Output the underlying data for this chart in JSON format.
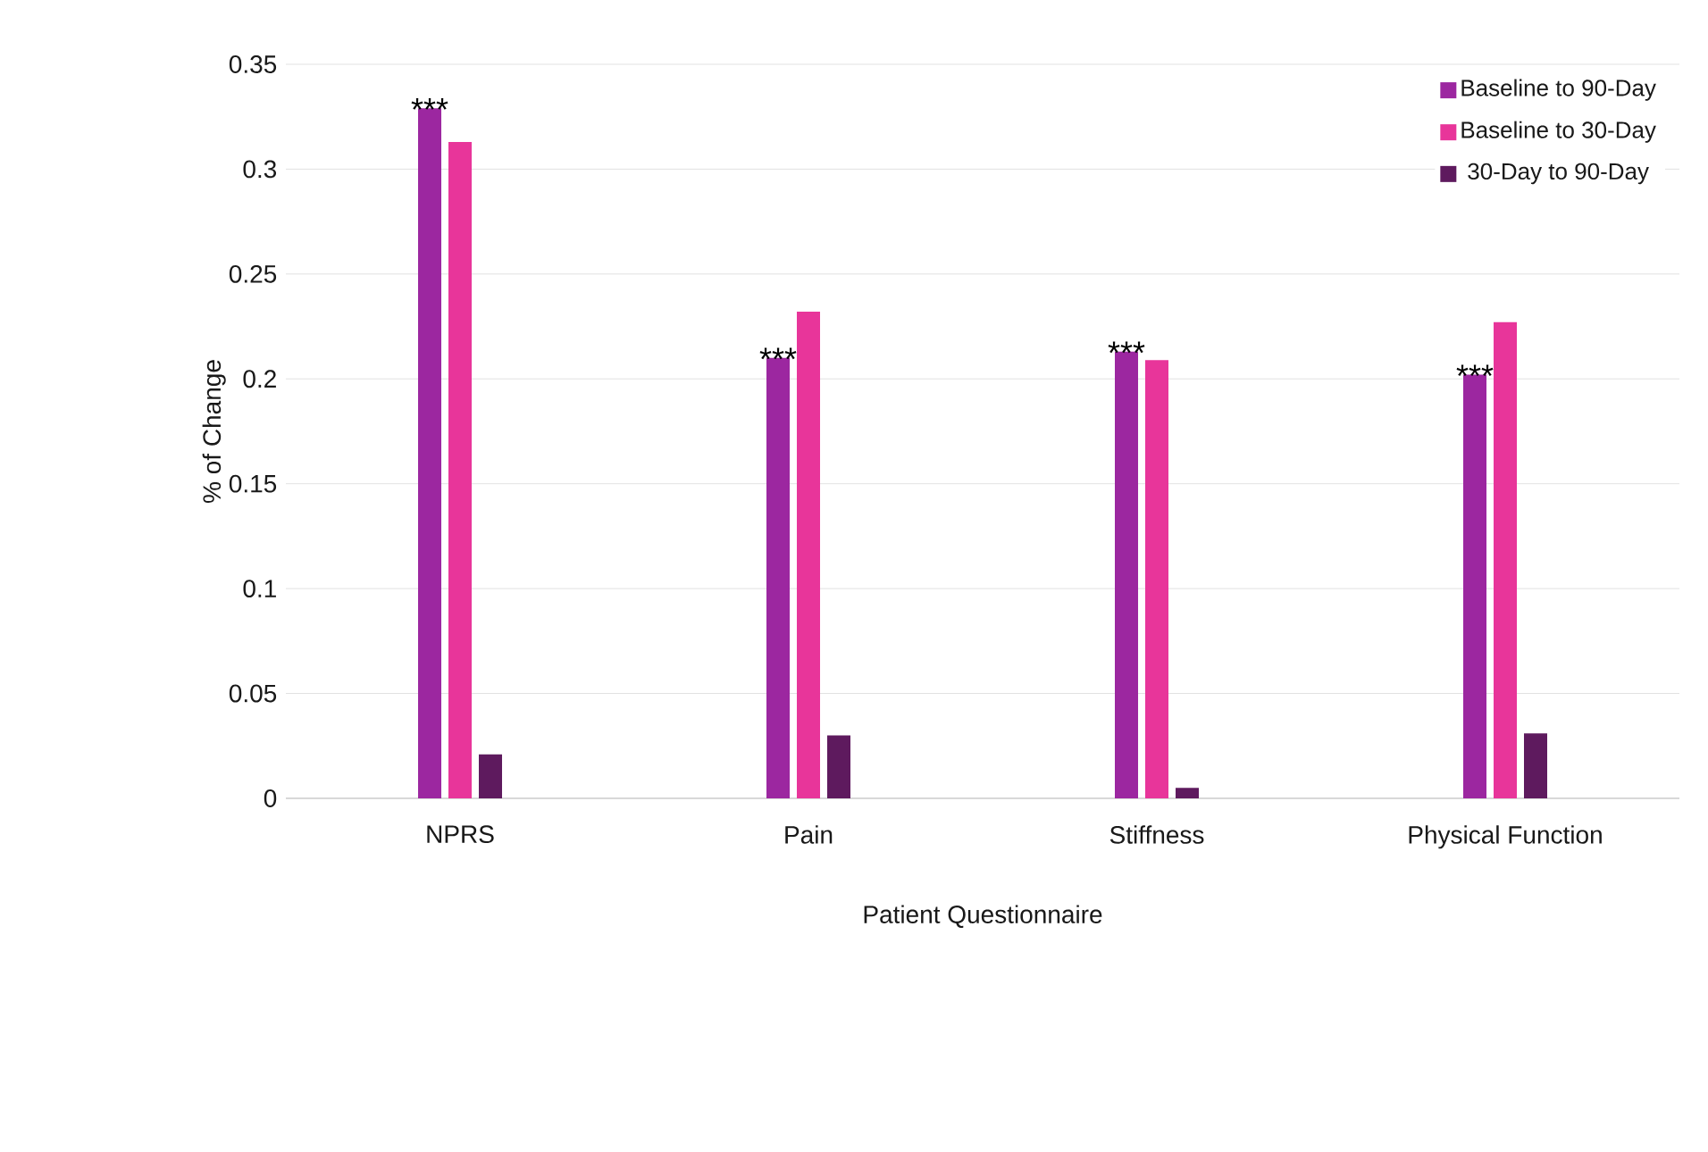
{
  "chart_data": {
    "type": "bar",
    "xlabel": "Patient Questionnaire",
    "ylabel": "% of Change",
    "categories": [
      "NPRS",
      "Pain",
      "Stiffness",
      "Physical Function"
    ],
    "series": [
      {
        "name": "Baseline to 90-Day",
        "color": "#9c27a0",
        "values": [
          0.329,
          0.21,
          0.213,
          0.202
        ]
      },
      {
        "name": "Baseline to 30-Day",
        "color": "#e8359a",
        "values": [
          0.313,
          0.232,
          0.209,
          0.227
        ]
      },
      {
        "name": "30-Day to 90-Day",
        "color": "#5e1a5e",
        "values": [
          0.021,
          0.03,
          0.005,
          0.031
        ]
      }
    ],
    "ylim": [
      0,
      0.35
    ],
    "yticks": [
      0,
      0.05,
      0.1,
      0.15,
      0.2,
      0.25,
      0.3,
      0.35
    ],
    "grid": "y",
    "legend": "top right",
    "annotations": [
      "***",
      "***",
      "***",
      "***"
    ]
  }
}
